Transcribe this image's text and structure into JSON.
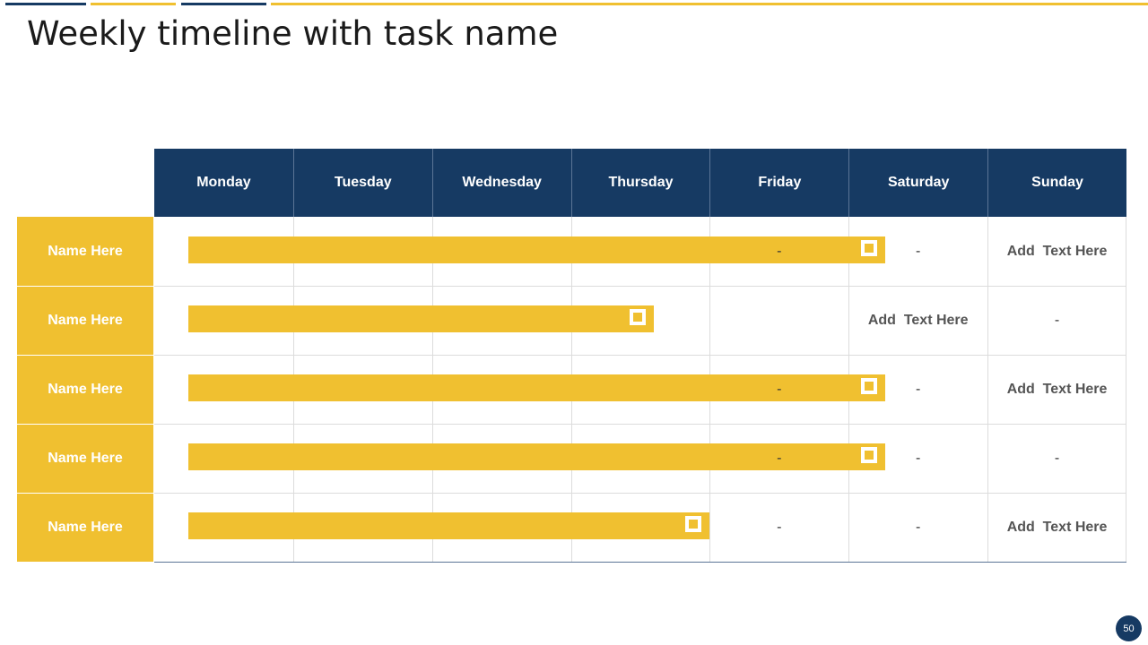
{
  "slide": {
    "title": "Weekly timeline with task name",
    "page_number": "50"
  },
  "colors": {
    "navy": "#163a63",
    "yellow": "#f0c030",
    "grid_line": "#dcdcdc",
    "text_gray": "#555555"
  },
  "days": [
    "Monday",
    "Tuesday",
    "Wednesday",
    "Thursday",
    "Friday",
    "Saturday",
    "Sunday"
  ],
  "tasks": [
    {
      "name": "Name Here",
      "bar_end_day": 5.26,
      "cells": {
        "Friday": "-",
        "Saturday": "-",
        "Sunday": "Add  Text Here"
      }
    },
    {
      "name": "Name Here",
      "bar_end_day": 3.6,
      "cells": {
        "Saturday": "Add  Text Here",
        "Sunday": "-"
      }
    },
    {
      "name": "Name Here",
      "bar_end_day": 5.26,
      "cells": {
        "Friday": "-",
        "Saturday": "-",
        "Sunday": "Add  Text Here"
      }
    },
    {
      "name": "Name Here",
      "bar_end_day": 5.26,
      "cells": {
        "Friday": "-",
        "Saturday": "-",
        "Sunday": "-"
      }
    },
    {
      "name": "Name Here",
      "bar_end_day": 4.0,
      "cells": {
        "Friday": "-",
        "Saturday": "-",
        "Sunday": "Add  Text Here"
      }
    }
  ]
}
